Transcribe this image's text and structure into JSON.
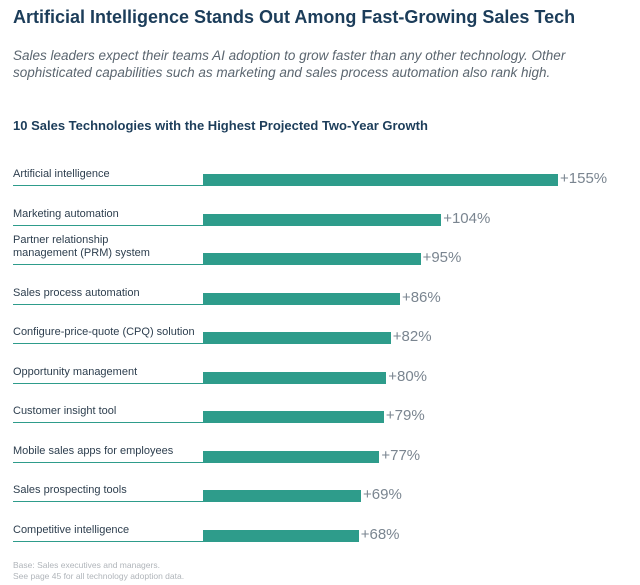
{
  "chart_data": {
    "type": "bar",
    "orientation": "horizontal",
    "title": "Artificial Intelligence Stands Out Among Fast-Growing Sales Tech",
    "subtitle": "Sales leaders expect their teams AI adoption to grow faster than any other technology. Other sophisticated capabilities such as marketing and sales process automation also rank high.",
    "chart_title": "10 Sales Technologies with the Highest Projected Two-Year Growth",
    "categories": [
      "Artificial intelligence",
      "Marketing automation",
      "Partner relationship\nmanagement (PRM) system",
      "Sales process automation",
      "Configure-price-quote (CPQ) solution",
      "Opportunity management",
      "Customer insight tool",
      "Mobile sales apps for employees",
      "Sales prospecting tools",
      "Competitive intelligence"
    ],
    "values": [
      155,
      104,
      95,
      86,
      82,
      80,
      79,
      77,
      69,
      68
    ],
    "value_labels": [
      "+155%",
      "+104%",
      "+95%",
      "+86%",
      "+82%",
      "+80%",
      "+79%",
      "+77%",
      "+69%",
      "+68%"
    ],
    "color": "#2e9c8b",
    "notes": [
      "Base: Sales executives and managers.",
      "See page 45 for all technology adoption data."
    ]
  }
}
